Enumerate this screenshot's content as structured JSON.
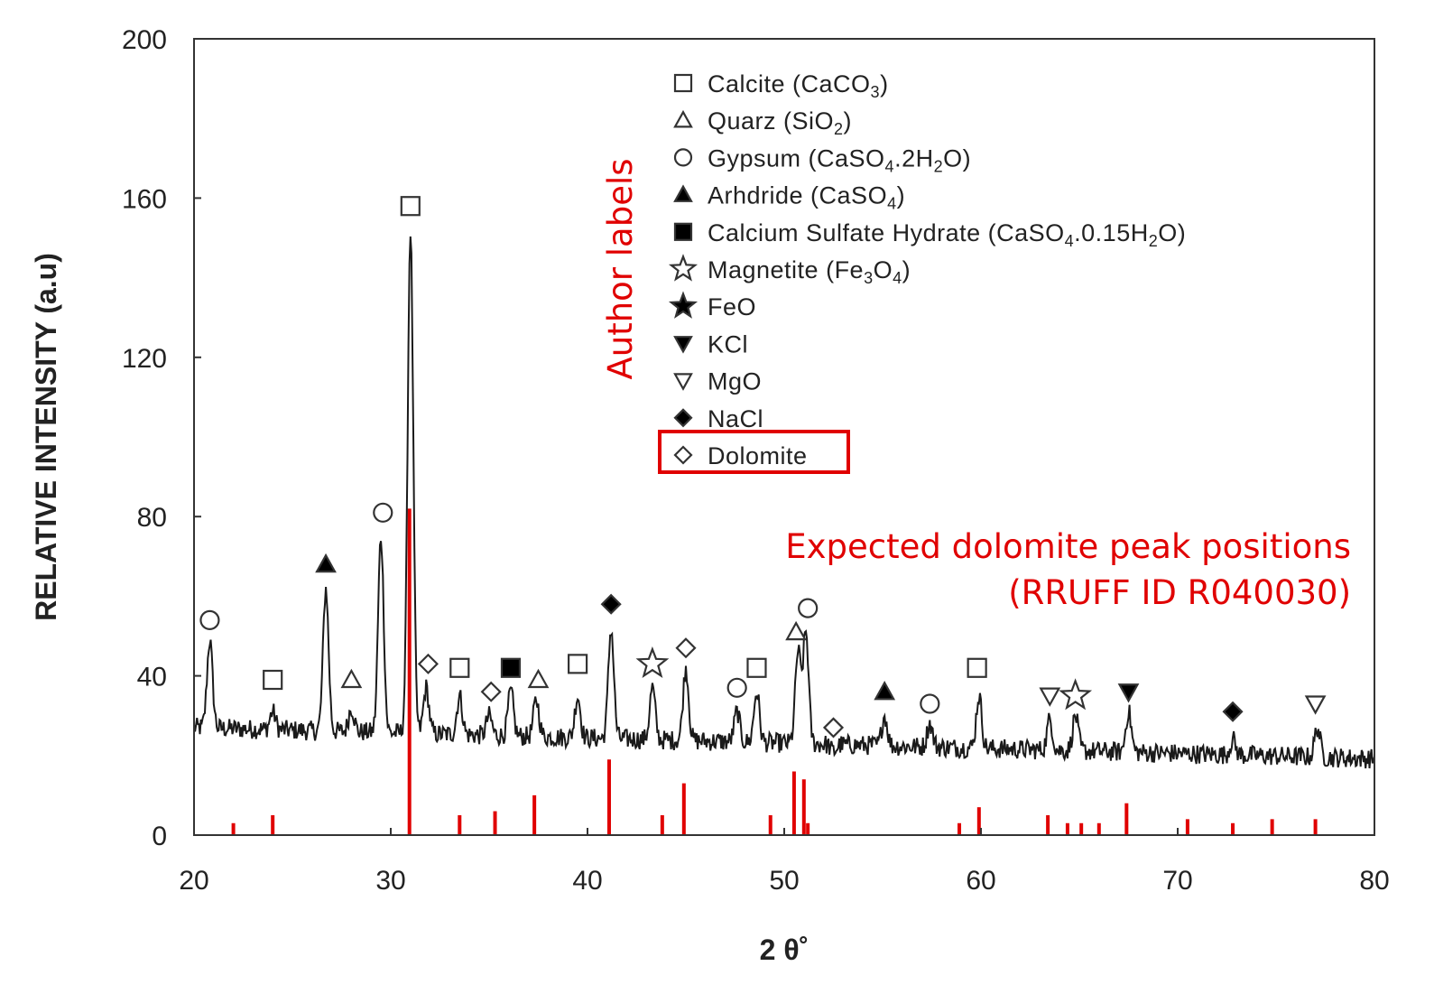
{
  "chart_data": {
    "type": "line",
    "title": "",
    "xlabel": "2 θ˚",
    "ylabel": "RELATIVE INTENSITY (a.u)",
    "xlim": [
      20,
      80
    ],
    "ylim": [
      0,
      200
    ],
    "x_ticks": [
      20,
      30,
      40,
      50,
      60,
      70,
      80
    ],
    "y_ticks": [
      0,
      40,
      80,
      120,
      160,
      200
    ],
    "grid": false,
    "legend_position": "top-center",
    "line_color": "#1a1a1a",
    "reference_color": "#e00000",
    "peaks": [
      [
        20.8,
        49
      ],
      [
        24.0,
        31
      ],
      [
        26.7,
        62
      ],
      [
        28.0,
        32
      ],
      [
        29.5,
        75
      ],
      [
        31.0,
        152
      ],
      [
        31.8,
        37
      ],
      [
        33.5,
        35
      ],
      [
        35.0,
        30
      ],
      [
        36.1,
        36
      ],
      [
        37.4,
        34
      ],
      [
        39.5,
        35
      ],
      [
        41.2,
        52
      ],
      [
        43.3,
        37
      ],
      [
        45.0,
        42
      ],
      [
        47.6,
        31
      ],
      [
        48.6,
        36
      ],
      [
        50.7,
        46
      ],
      [
        51.1,
        51
      ],
      [
        52.5,
        21
      ],
      [
        55.1,
        30
      ],
      [
        57.4,
        28
      ],
      [
        59.9,
        35
      ],
      [
        63.5,
        29
      ],
      [
        64.8,
        30
      ],
      [
        67.5,
        31
      ],
      [
        72.8,
        24
      ],
      [
        77.1,
        27
      ]
    ],
    "reference_peaks": [
      {
        "x": 22.0,
        "y": 3
      },
      {
        "x": 24.0,
        "y": 5
      },
      {
        "x": 30.95,
        "y": 82
      },
      {
        "x": 33.5,
        "y": 5
      },
      {
        "x": 35.3,
        "y": 6
      },
      {
        "x": 37.3,
        "y": 10
      },
      {
        "x": 41.1,
        "y": 19
      },
      {
        "x": 43.8,
        "y": 5
      },
      {
        "x": 44.9,
        "y": 13
      },
      {
        "x": 49.3,
        "y": 5
      },
      {
        "x": 50.5,
        "y": 16
      },
      {
        "x": 51.0,
        "y": 14
      },
      {
        "x": 51.2,
        "y": 3
      },
      {
        "x": 58.9,
        "y": 3
      },
      {
        "x": 59.9,
        "y": 7
      },
      {
        "x": 63.4,
        "y": 5
      },
      {
        "x": 64.4,
        "y": 3
      },
      {
        "x": 65.1,
        "y": 3
      },
      {
        "x": 66.0,
        "y": 3
      },
      {
        "x": 67.4,
        "y": 8
      },
      {
        "x": 70.5,
        "y": 4
      },
      {
        "x": 72.8,
        "y": 3
      },
      {
        "x": 74.8,
        "y": 4
      },
      {
        "x": 77.0,
        "y": 4
      }
    ],
    "peak_markers": [
      {
        "x": 20.8,
        "y": 54,
        "symbol": "circle"
      },
      {
        "x": 24.0,
        "y": 39,
        "symbol": "square"
      },
      {
        "x": 26.7,
        "y": 68,
        "symbol": "triangle-filled"
      },
      {
        "x": 28.0,
        "y": 39,
        "symbol": "triangle"
      },
      {
        "x": 29.6,
        "y": 81,
        "symbol": "circle"
      },
      {
        "x": 31.0,
        "y": 158,
        "symbol": "square"
      },
      {
        "x": 31.9,
        "y": 43,
        "symbol": "diamond"
      },
      {
        "x": 33.5,
        "y": 42,
        "symbol": "square"
      },
      {
        "x": 35.1,
        "y": 36,
        "symbol": "diamond"
      },
      {
        "x": 36.1,
        "y": 42,
        "symbol": "square-filled"
      },
      {
        "x": 37.5,
        "y": 39,
        "symbol": "triangle"
      },
      {
        "x": 39.5,
        "y": 43,
        "symbol": "square"
      },
      {
        "x": 41.2,
        "y": 58,
        "symbol": "diamond-filled"
      },
      {
        "x": 43.3,
        "y": 43,
        "symbol": "star"
      },
      {
        "x": 45.0,
        "y": 47,
        "symbol": "diamond"
      },
      {
        "x": 47.6,
        "y": 37,
        "symbol": "circle"
      },
      {
        "x": 48.6,
        "y": 42,
        "symbol": "square"
      },
      {
        "x": 50.6,
        "y": 51,
        "symbol": "triangle"
      },
      {
        "x": 51.2,
        "y": 57,
        "symbol": "circle"
      },
      {
        "x": 52.5,
        "y": 27,
        "symbol": "diamond"
      },
      {
        "x": 55.1,
        "y": 36,
        "symbol": "triangle-filled"
      },
      {
        "x": 57.4,
        "y": 33,
        "symbol": "circle"
      },
      {
        "x": 59.8,
        "y": 42,
        "symbol": "square"
      },
      {
        "x": 63.5,
        "y": 35,
        "symbol": "inv-triangle"
      },
      {
        "x": 64.8,
        "y": 35,
        "symbol": "star"
      },
      {
        "x": 67.5,
        "y": 36,
        "symbol": "inv-triangle-filled"
      },
      {
        "x": 72.8,
        "y": 31,
        "symbol": "diamond-filled"
      },
      {
        "x": 77.0,
        "y": 33,
        "symbol": "inv-triangle"
      }
    ],
    "legend": [
      {
        "symbol": "square",
        "parts": [
          [
            "Calcite (CaCO",
            "n"
          ],
          [
            "3",
            "sub"
          ],
          [
            ")",
            "n"
          ]
        ]
      },
      {
        "symbol": "triangle",
        "parts": [
          [
            "Quarz  (SiO",
            "n"
          ],
          [
            "2",
            "sub"
          ],
          [
            ")",
            "n"
          ]
        ]
      },
      {
        "symbol": "circle",
        "parts": [
          [
            "Gypsum (CaSO",
            "n"
          ],
          [
            "4",
            "sub"
          ],
          [
            ".2H",
            "n"
          ],
          [
            "2",
            "sub"
          ],
          [
            "O)",
            "n"
          ]
        ]
      },
      {
        "symbol": "triangle-filled",
        "parts": [
          [
            "Arhdride (CaSO",
            "n"
          ],
          [
            "4",
            "sub"
          ],
          [
            ")",
            "n"
          ]
        ]
      },
      {
        "symbol": "square-filled",
        "parts": [
          [
            "Calcium  Sulfate  Hydrate  (CaSO",
            "n"
          ],
          [
            "4",
            "sub"
          ],
          [
            ".0.15H",
            "n"
          ],
          [
            "2",
            "sub"
          ],
          [
            "O)",
            "n"
          ]
        ]
      },
      {
        "symbol": "star",
        "parts": [
          [
            "Magnetite (Fe",
            "n"
          ],
          [
            "3",
            "sub"
          ],
          [
            "O",
            "n"
          ],
          [
            "4",
            "sub"
          ],
          [
            ")",
            "n"
          ]
        ]
      },
      {
        "symbol": "star-filled",
        "parts": [
          [
            "FeO",
            "n"
          ]
        ]
      },
      {
        "symbol": "inv-triangle-filled",
        "parts": [
          [
            "KCl",
            "n"
          ]
        ]
      },
      {
        "symbol": "inv-triangle",
        "parts": [
          [
            "MgO",
            "n"
          ]
        ]
      },
      {
        "symbol": "diamond-filled",
        "parts": [
          [
            "NaCl",
            "n"
          ]
        ]
      },
      {
        "symbol": "diamond",
        "parts": [
          [
            "Dolomite",
            "n"
          ]
        ]
      }
    ],
    "annotations": {
      "author_labels": "Author labels",
      "expected_line1": "Expected dolomite peak positions",
      "expected_line2": "(RRUFF ID R040030)"
    }
  }
}
